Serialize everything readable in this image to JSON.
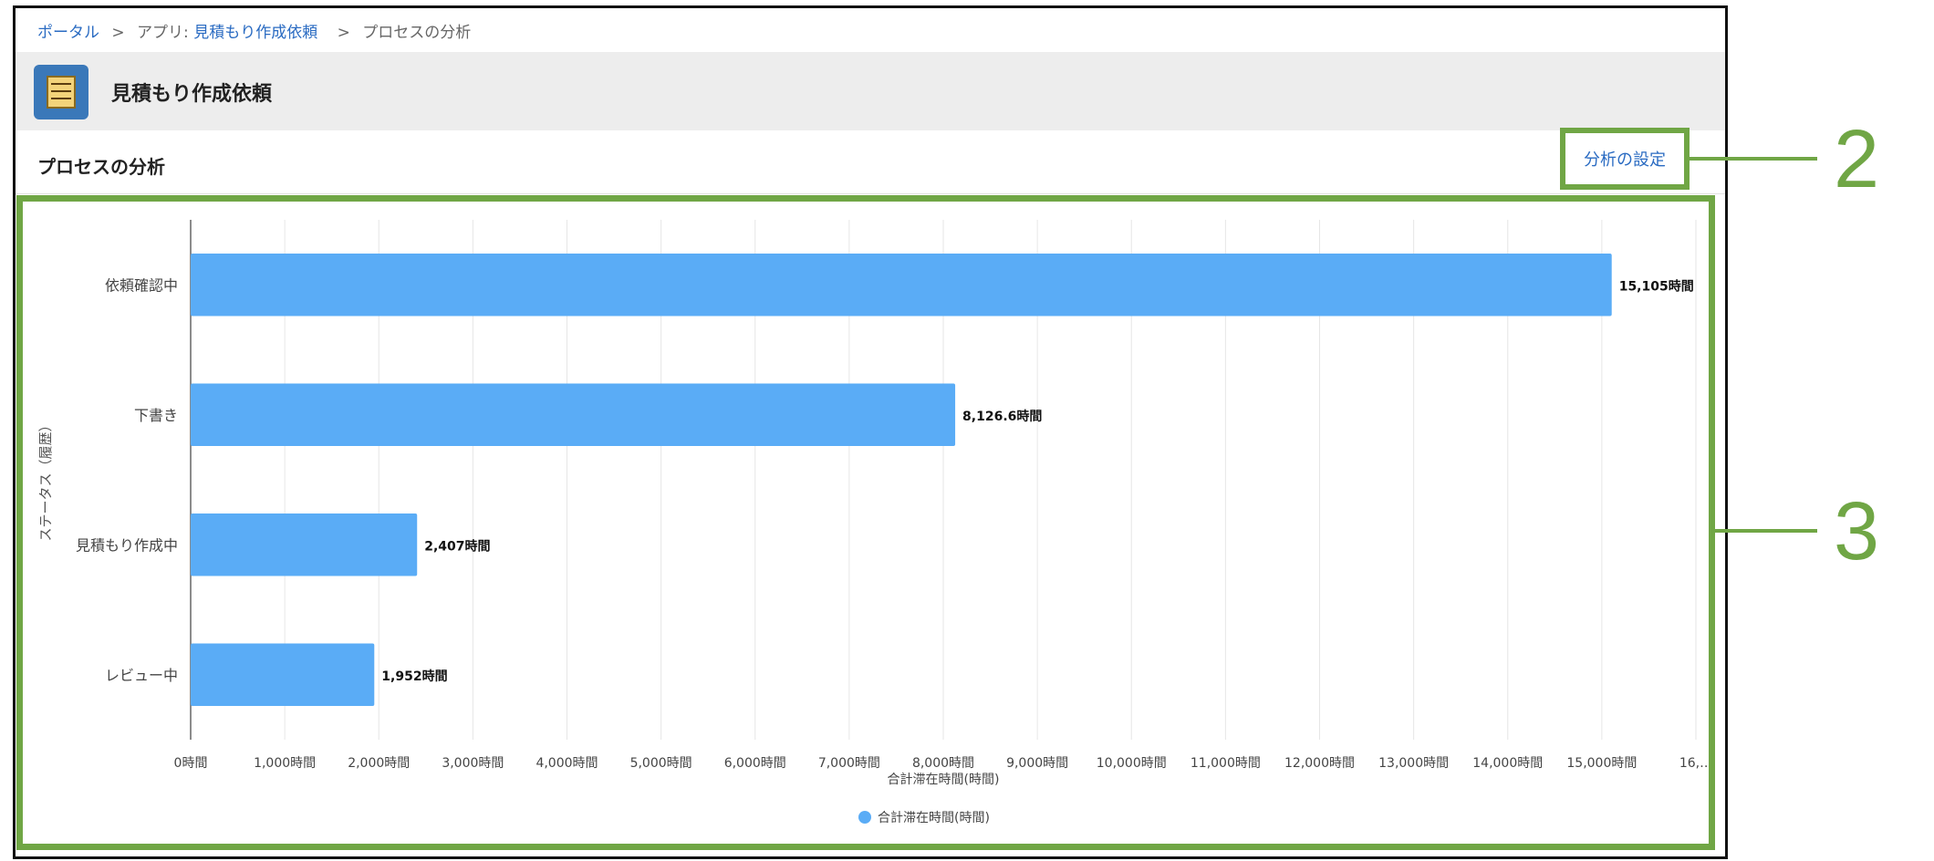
{
  "breadcrumb": {
    "portal": "ポータル",
    "sep": ">",
    "app_prefix": "アプリ: ",
    "app_name": "見積もり作成依頼",
    "current": "プロセスの分析"
  },
  "app": {
    "title": "見積もり作成依頼"
  },
  "section": {
    "title": "プロセスの分析",
    "settings_button": "分析の設定"
  },
  "annotations": {
    "callout_settings": "2",
    "callout_chart": "3"
  },
  "colors": {
    "bar": "#5aacf6",
    "annotation": "#70a645",
    "link": "#2a6bc2"
  },
  "chart_data": {
    "type": "bar",
    "orientation": "horizontal",
    "categories": [
      "依頼確認中",
      "下書き",
      "見積もり作成中",
      "レビュー中"
    ],
    "series": [
      {
        "name": "合計滞在時間(時間)",
        "values": [
          15105,
          8126.6,
          2407,
          1952
        ]
      }
    ],
    "data_labels": [
      "15,105時間",
      "8,126.6時間",
      "2,407時間",
      "1,952時間"
    ],
    "x_ticks": [
      "0時間",
      "1,000時間",
      "2,000時間",
      "3,000時間",
      "4,000時間",
      "5,000時間",
      "6,000時間",
      "7,000時間",
      "8,000時間",
      "9,000時間",
      "10,000時間",
      "11,000時間",
      "12,000時間",
      "13,000時間",
      "14,000時間",
      "15,000時間",
      "16,…"
    ],
    "xlabel": "合計滞在時間(時間)",
    "ylabel": "ステータス（履歴）",
    "xlim": [
      0,
      16000
    ],
    "grid": true,
    "legend": "bottom"
  }
}
